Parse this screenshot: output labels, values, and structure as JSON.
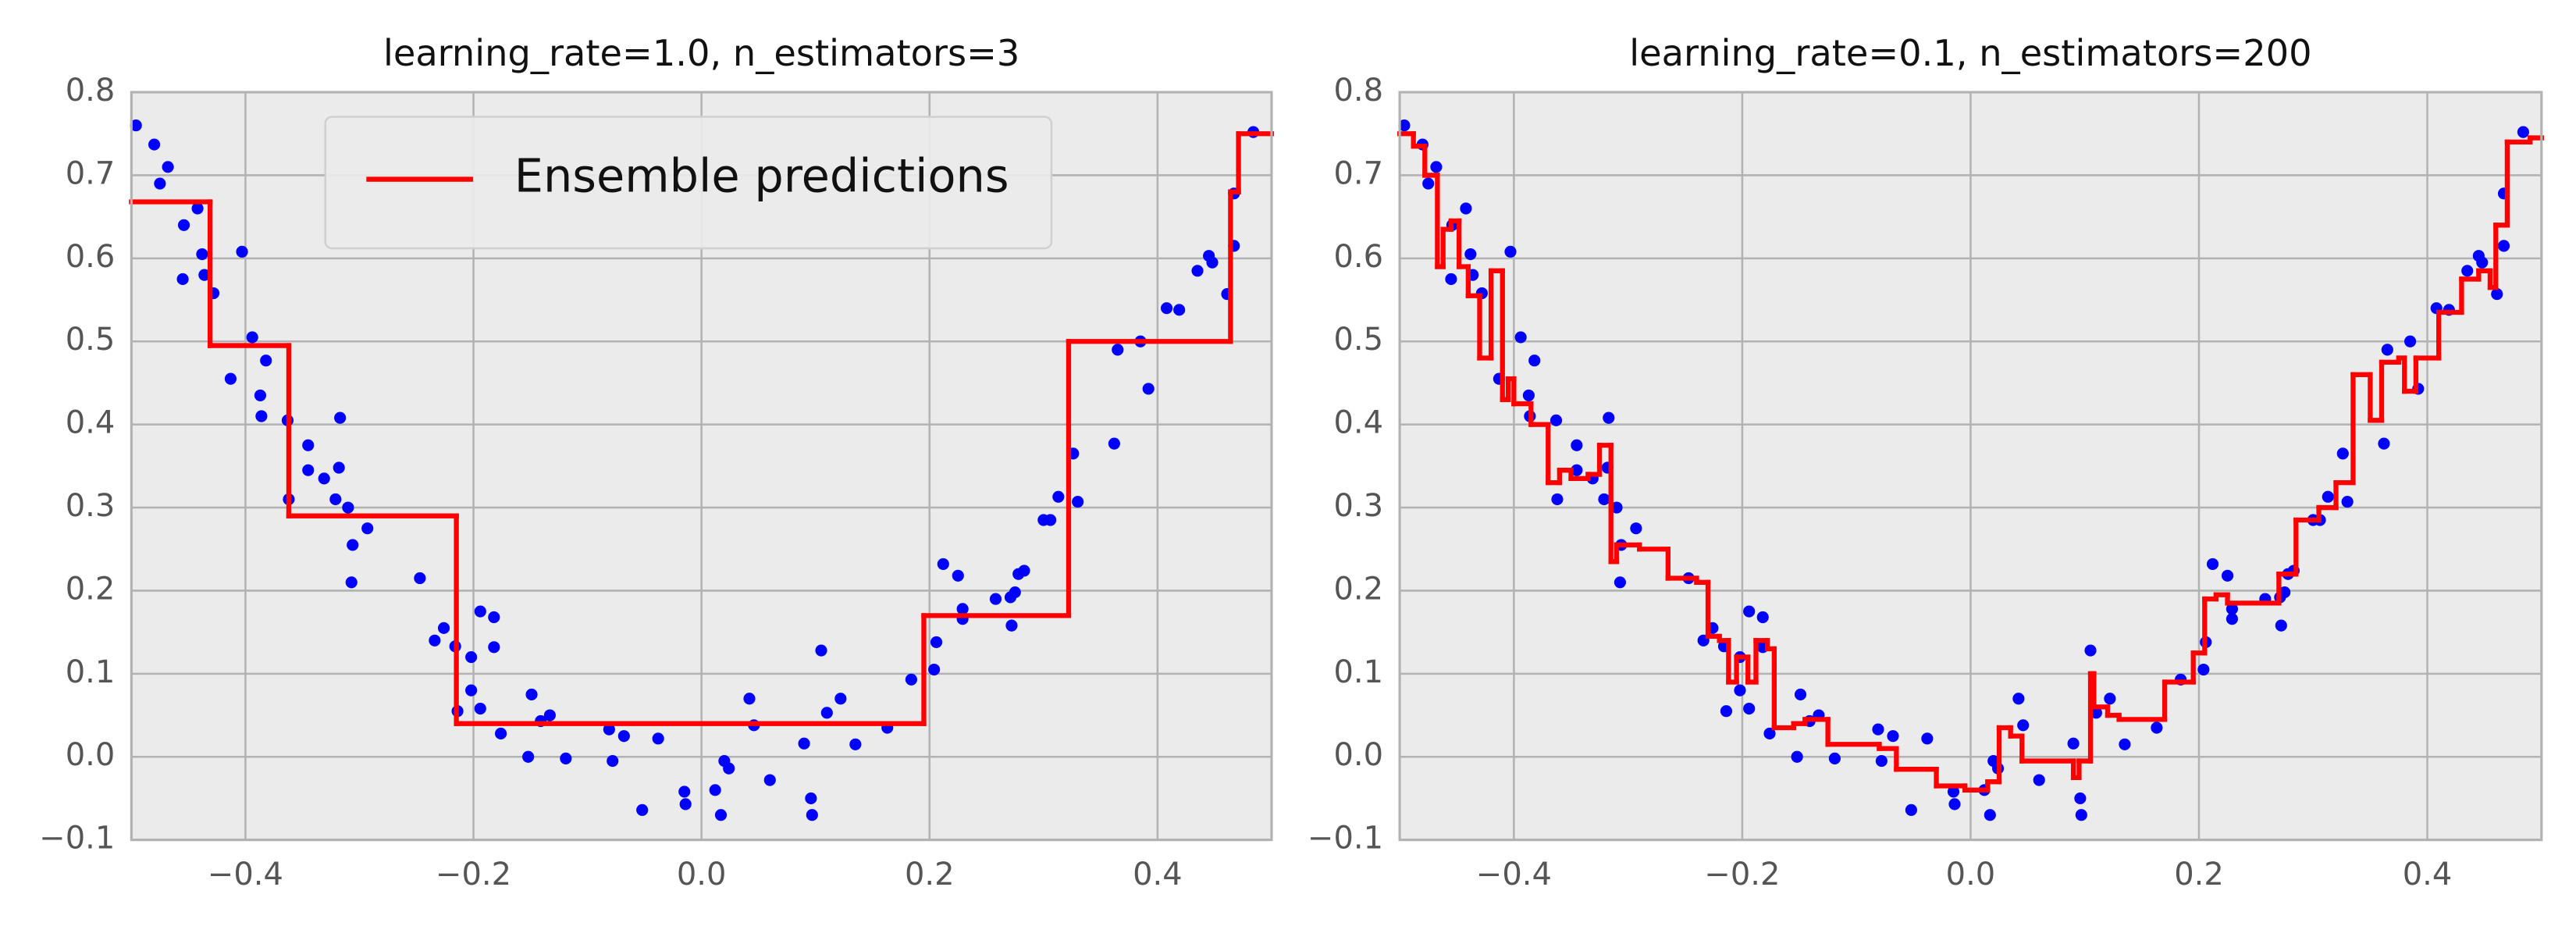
{
  "chart_data": [
    {
      "type": "scatter",
      "title": "learning_rate=1.0, n_estimators=3",
      "xlim": [
        -0.5,
        0.5
      ],
      "ylim": [
        -0.1,
        0.8
      ],
      "xticks": [
        {
          "value": -0.4,
          "label": "−0.4"
        },
        {
          "value": -0.2,
          "label": "−0.2"
        },
        {
          "value": 0,
          "label": "0.0"
        },
        0.2,
        0.4
      ],
      "yticks": [
        {
          "value": -0.1,
          "label": "−0.1"
        },
        {
          "value": 0,
          "label": "0.0"
        },
        0.1,
        0.2,
        0.3,
        0.4,
        0.5,
        0.6,
        0.7,
        0.8
      ],
      "grid": true,
      "legend": "upper center",
      "series": [
        {
          "type": "scatter",
          "color": "#0000ff",
          "x": [
            -0.496,
            -0.48,
            -0.475,
            -0.468,
            -0.454,
            -0.455,
            -0.442,
            -0.438,
            -0.436,
            -0.428,
            -0.403,
            -0.413,
            -0.394,
            -0.387,
            -0.386,
            -0.382,
            -0.363,
            -0.362,
            -0.345,
            -0.345,
            -0.331,
            -0.318,
            -0.317,
            -0.321,
            -0.31,
            -0.306,
            -0.307,
            -0.293,
            -0.247,
            -0.234,
            -0.226,
            -0.216,
            -0.214,
            -0.202,
            -0.202,
            -0.194,
            -0.182,
            -0.194,
            -0.182,
            -0.176,
            -0.149,
            -0.152,
            -0.141,
            -0.133,
            -0.119,
            -0.081,
            -0.078,
            -0.068,
            -0.052,
            -0.038,
            -0.015,
            -0.014,
            0.012,
            0.017,
            0.02,
            0.024,
            0.042,
            0.046,
            0.06,
            0.09,
            0.096,
            0.097,
            0.105,
            0.11,
            0.122,
            0.135,
            0.163,
            0.184,
            0.204,
            0.206,
            0.212,
            0.225,
            0.229,
            0.229,
            0.258,
            0.271,
            0.272,
            0.275,
            0.278,
            0.283,
            0.3,
            0.306,
            0.313,
            0.326,
            0.33,
            0.362,
            0.365,
            0.385,
            0.392,
            0.408,
            0.419,
            0.435,
            0.445,
            0.448,
            0.461,
            0.467,
            0.467,
            0.484
          ],
          "values": [
            0.76,
            0.737,
            0.69,
            0.71,
            0.64,
            0.575,
            0.66,
            0.605,
            0.58,
            0.558,
            0.608,
            0.455,
            0.505,
            0.435,
            0.41,
            0.477,
            0.405,
            0.31,
            0.375,
            0.345,
            0.335,
            0.348,
            0.408,
            0.31,
            0.3,
            0.255,
            0.21,
            0.275,
            0.215,
            0.14,
            0.155,
            0.133,
            0.055,
            0.12,
            0.08,
            0.175,
            0.168,
            0.058,
            0.132,
            0.028,
            0.075,
            0.0,
            0.043,
            0.05,
            -0.002,
            0.033,
            -0.005,
            0.025,
            -0.064,
            0.022,
            -0.042,
            -0.057,
            -0.04,
            -0.07,
            -0.005,
            -0.014,
            0.07,
            0.038,
            -0.028,
            0.016,
            -0.05,
            -0.07,
            0.128,
            0.053,
            0.07,
            0.015,
            0.035,
            0.093,
            0.105,
            0.138,
            0.232,
            0.218,
            0.166,
            0.178,
            0.19,
            0.192,
            0.158,
            0.198,
            0.22,
            0.224,
            0.285,
            0.285,
            0.313,
            0.365,
            0.307,
            0.377,
            0.49,
            0.5,
            0.443,
            0.54,
            0.538,
            0.585,
            0.603,
            0.595,
            0.557,
            0.615,
            0.678,
            0.752
          ]
        },
        {
          "type": "step",
          "name": "Ensemble predictions",
          "color": "#ff0000",
          "x": [
            -0.5,
            -0.431,
            -0.362,
            -0.215,
            0.195,
            0.322,
            0.464,
            0.471
          ],
          "values": [
            0.668,
            0.495,
            0.29,
            0.04,
            0.17,
            0.5,
            0.68,
            0.75
          ]
        }
      ]
    },
    {
      "type": "scatter",
      "title": "learning_rate=0.1, n_estimators=200",
      "xlim": [
        -0.5,
        0.5
      ],
      "ylim": [
        -0.1,
        0.8
      ],
      "xticks": [
        {
          "value": -0.4,
          "label": "−0.4"
        },
        {
          "value": -0.2,
          "label": "−0.2"
        },
        {
          "value": 0,
          "label": "0.0"
        },
        0.2,
        0.4
      ],
      "yticks": [
        {
          "value": -0.1,
          "label": "−0.1"
        },
        {
          "value": 0,
          "label": "0.0"
        },
        0.1,
        0.2,
        0.3,
        0.4,
        0.5,
        0.6,
        0.7,
        0.8
      ],
      "grid": true,
      "series": [
        {
          "type": "scatter",
          "color": "#0000ff",
          "x": [
            -0.496,
            -0.48,
            -0.475,
            -0.468,
            -0.454,
            -0.455,
            -0.442,
            -0.438,
            -0.436,
            -0.428,
            -0.403,
            -0.413,
            -0.394,
            -0.387,
            -0.386,
            -0.382,
            -0.363,
            -0.362,
            -0.345,
            -0.345,
            -0.331,
            -0.318,
            -0.317,
            -0.321,
            -0.31,
            -0.306,
            -0.307,
            -0.293,
            -0.247,
            -0.234,
            -0.226,
            -0.216,
            -0.214,
            -0.202,
            -0.202,
            -0.194,
            -0.182,
            -0.194,
            -0.182,
            -0.176,
            -0.149,
            -0.152,
            -0.141,
            -0.133,
            -0.119,
            -0.081,
            -0.078,
            -0.068,
            -0.052,
            -0.038,
            -0.015,
            -0.014,
            0.012,
            0.017,
            0.02,
            0.024,
            0.042,
            0.046,
            0.06,
            0.09,
            0.096,
            0.097,
            0.105,
            0.11,
            0.122,
            0.135,
            0.163,
            0.184,
            0.204,
            0.206,
            0.212,
            0.225,
            0.229,
            0.229,
            0.258,
            0.271,
            0.272,
            0.275,
            0.278,
            0.283,
            0.3,
            0.306,
            0.313,
            0.326,
            0.33,
            0.362,
            0.365,
            0.385,
            0.392,
            0.408,
            0.419,
            0.435,
            0.445,
            0.448,
            0.461,
            0.467,
            0.467,
            0.484
          ],
          "values": [
            0.76,
            0.737,
            0.69,
            0.71,
            0.64,
            0.575,
            0.66,
            0.605,
            0.58,
            0.558,
            0.608,
            0.455,
            0.505,
            0.435,
            0.41,
            0.477,
            0.405,
            0.31,
            0.375,
            0.345,
            0.335,
            0.348,
            0.408,
            0.31,
            0.3,
            0.255,
            0.21,
            0.275,
            0.215,
            0.14,
            0.155,
            0.133,
            0.055,
            0.12,
            0.08,
            0.175,
            0.168,
            0.058,
            0.132,
            0.028,
            0.075,
            0.0,
            0.043,
            0.05,
            -0.002,
            0.033,
            -0.005,
            0.025,
            -0.064,
            0.022,
            -0.042,
            -0.057,
            -0.04,
            -0.07,
            -0.005,
            -0.014,
            0.07,
            0.038,
            -0.028,
            0.016,
            -0.05,
            -0.07,
            0.128,
            0.053,
            0.07,
            0.015,
            0.035,
            0.093,
            0.105,
            0.138,
            0.232,
            0.218,
            0.166,
            0.178,
            0.19,
            0.192,
            0.158,
            0.198,
            0.22,
            0.224,
            0.285,
            0.285,
            0.313,
            0.365,
            0.307,
            0.377,
            0.49,
            0.5,
            0.443,
            0.54,
            0.538,
            0.585,
            0.603,
            0.595,
            0.557,
            0.615,
            0.678,
            0.752
          ]
        },
        {
          "type": "step",
          "color": "#ff0000",
          "x": [
            -0.5,
            -0.488,
            -0.478,
            -0.467,
            -0.462,
            -0.455,
            -0.448,
            -0.44,
            -0.43,
            -0.42,
            -0.41,
            -0.405,
            -0.4,
            -0.385,
            -0.37,
            -0.36,
            -0.35,
            -0.335,
            -0.325,
            -0.315,
            -0.31,
            -0.29,
            -0.265,
            -0.24,
            -0.23,
            -0.22,
            -0.212,
            -0.205,
            -0.195,
            -0.188,
            -0.178,
            -0.172,
            -0.155,
            -0.145,
            -0.125,
            -0.08,
            -0.065,
            -0.03,
            -0.005,
            0.015,
            0.025,
            0.035,
            0.045,
            0.09,
            0.095,
            0.105,
            0.108,
            0.12,
            0.13,
            0.17,
            0.185,
            0.195,
            0.205,
            0.215,
            0.225,
            0.27,
            0.285,
            0.305,
            0.32,
            0.335,
            0.35,
            0.36,
            0.375,
            0.38,
            0.39,
            0.41,
            0.43,
            0.445,
            0.455,
            0.46,
            0.47,
            0.49
          ],
          "values": [
            0.75,
            0.735,
            0.7,
            0.59,
            0.635,
            0.645,
            0.59,
            0.555,
            0.48,
            0.585,
            0.43,
            0.455,
            0.425,
            0.4,
            0.33,
            0.345,
            0.335,
            0.34,
            0.375,
            0.235,
            0.255,
            0.25,
            0.215,
            0.21,
            0.145,
            0.14,
            0.09,
            0.12,
            0.09,
            0.14,
            0.13,
            0.035,
            0.04,
            0.045,
            0.015,
            0.01,
            -0.015,
            -0.035,
            -0.04,
            -0.03,
            0.035,
            0.025,
            -0.005,
            -0.025,
            -0.005,
            0.1,
            0.06,
            0.05,
            0.045,
            0.09,
            0.09,
            0.125,
            0.19,
            0.195,
            0.185,
            0.22,
            0.285,
            0.3,
            0.33,
            0.46,
            0.405,
            0.475,
            0.48,
            0.44,
            0.48,
            0.535,
            0.575,
            0.585,
            0.565,
            0.64,
            0.74,
            0.745
          ]
        }
      ]
    }
  ]
}
